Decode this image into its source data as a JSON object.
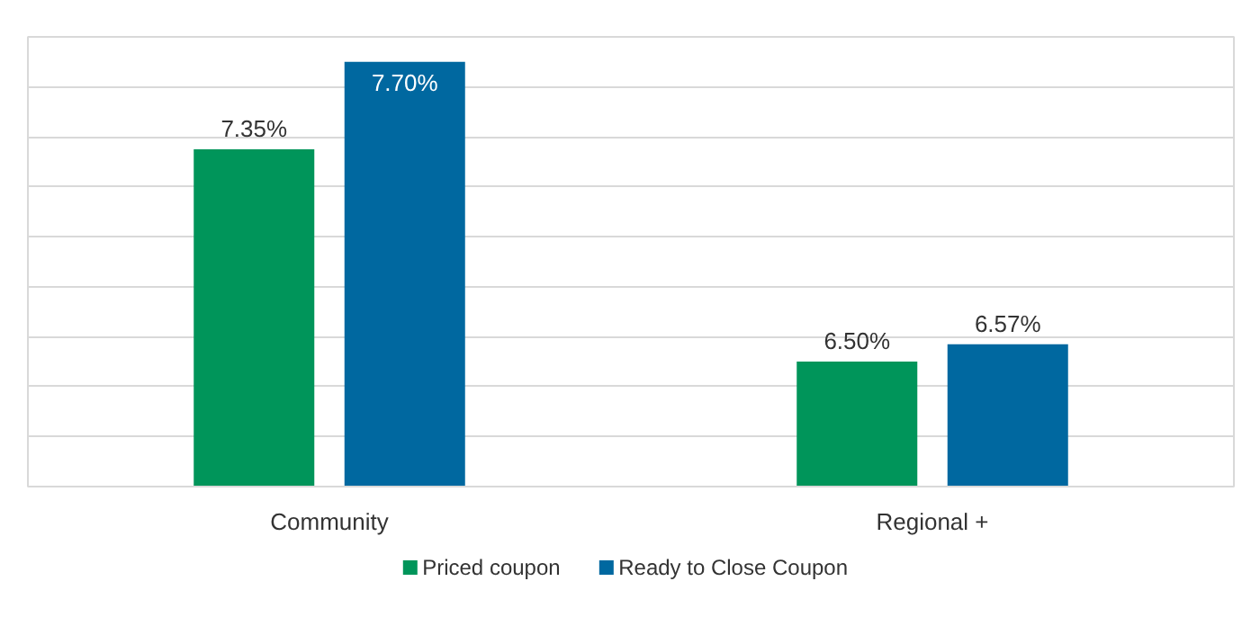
{
  "chart_data": {
    "type": "bar",
    "categories": [
      "Community",
      "Regional +"
    ],
    "series": [
      {
        "name": "Priced coupon",
        "color": "#00955a",
        "values": [
          7.35,
          6.5
        ],
        "value_labels": [
          "7.35%",
          "6.50%"
        ]
      },
      {
        "name": "Ready to Close Coupon",
        "color": "#0068a0",
        "values": [
          7.7,
          6.57
        ],
        "value_labels": [
          "7.70%",
          "6.57%"
        ]
      }
    ],
    "ylim": [
      6.0,
      7.8
    ],
    "yticks": [
      {
        "value": 6.0,
        "label": null
      },
      {
        "value": 6.2,
        "label": null
      },
      {
        "value": 6.4,
        "label": null
      },
      {
        "value": 6.6,
        "label": null
      },
      {
        "value": 6.8,
        "label": null
      },
      {
        "value": 7.0,
        "label": null
      },
      {
        "value": 7.2,
        "label": null
      },
      {
        "value": 7.4,
        "label": null
      },
      {
        "value": 7.6,
        "label": null
      },
      {
        "value": 7.8,
        "label": null
      }
    ],
    "grid": "y",
    "tick_labels": "x",
    "legend": "bottom"
  }
}
